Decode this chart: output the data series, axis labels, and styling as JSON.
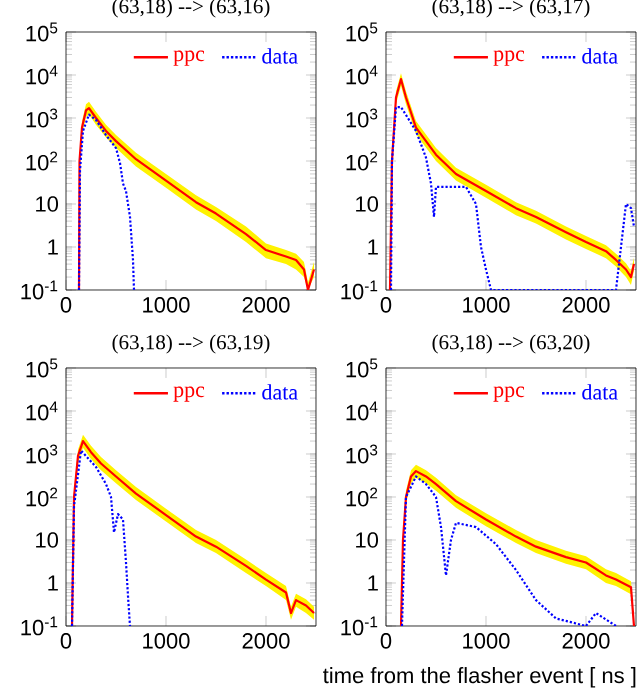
{
  "chart_data": [
    {
      "type": "line",
      "title": "(63,18) --> (63,16)",
      "xlim": [
        0,
        2500
      ],
      "ylim": [
        0.1,
        100000
      ],
      "log": "y",
      "legend": "top right",
      "xticks": [
        0,
        1000,
        2000
      ],
      "yticks": [
        {
          "value": 0.1,
          "label": "10$^{-1}$"
        },
        1,
        10,
        {
          "value": 100,
          "label": "10$^{2}$"
        },
        {
          "value": 1000,
          "label": "10$^{3}$"
        },
        {
          "value": 10000,
          "label": "10$^{4}$"
        },
        {
          "value": 100000,
          "label": "10$^{5}$"
        }
      ],
      "series": [
        {
          "name": "ppc",
          "color": "#ff0000",
          "line_style": "solid",
          "x": [
            130,
            135,
            160,
            200,
            230,
            300,
            400,
            500,
            700,
            1000,
            1300,
            1500,
            1800,
            2000,
            2200,
            2300,
            2380,
            2420,
            2480
          ],
          "values": [
            0.1,
            100,
            600,
            1500,
            1700,
            1000,
            500,
            290,
            110,
            35,
            11,
            6,
            2,
            0.85,
            0.6,
            0.5,
            0.3,
            0.1,
            0.3
          ],
          "lower": [
            0.1,
            70,
            420,
            1050,
            1200,
            700,
            350,
            200,
            75,
            24,
            7.5,
            4,
            1.3,
            0.55,
            0.4,
            0.3,
            0.2,
            0.1,
            0.2
          ],
          "upper": [
            0.1,
            140,
            850,
            2100,
            2400,
            1400,
            700,
            400,
            155,
            50,
            16,
            8.5,
            3,
            1.2,
            0.85,
            0.7,
            0.45,
            0.15,
            0.45
          ]
        },
        {
          "name": "data",
          "color": "#0000ff",
          "line_style": "dotted",
          "x": [
            130,
            140,
            170,
            230,
            300,
            400,
            500,
            540,
            570,
            600,
            640,
            670,
            680
          ],
          "values": [
            0.1,
            60,
            500,
            1200,
            900,
            400,
            200,
            90,
            30,
            20,
            5,
            0.5,
            0.1
          ]
        }
      ]
    },
    {
      "type": "line",
      "title": "(63,18) --> (63,17)",
      "xlim": [
        0,
        2500
      ],
      "ylim": [
        0.1,
        100000
      ],
      "log": "y",
      "legend": "top right",
      "xticks": [
        0,
        1000,
        2000
      ],
      "yticks": [
        {
          "value": 0.1,
          "label": "10$^{-1}$"
        },
        1,
        10,
        {
          "value": 100,
          "label": "10$^{2}$"
        },
        {
          "value": 1000,
          "label": "10$^{3}$"
        },
        {
          "value": 10000,
          "label": "10$^{4}$"
        },
        {
          "value": 100000,
          "label": "10$^{5}$"
        }
      ],
      "series": [
        {
          "name": "ppc",
          "color": "#ff0000",
          "line_style": "solid",
          "x": [
            40,
            60,
            100,
            150,
            200,
            300,
            500,
            700,
            1000,
            1300,
            1500,
            1800,
            2000,
            2200,
            2300,
            2400,
            2450,
            2480
          ],
          "values": [
            0.1,
            100,
            3000,
            8000,
            3000,
            600,
            140,
            50,
            20,
            8,
            5,
            2.2,
            1.3,
            0.8,
            0.5,
            0.3,
            0.2,
            0.4
          ],
          "lower": [
            0.1,
            70,
            2100,
            5600,
            2100,
            420,
            100,
            35,
            14,
            5.5,
            3.5,
            1.5,
            0.9,
            0.55,
            0.35,
            0.2,
            0.13,
            0.28
          ],
          "upper": [
            0.1,
            140,
            4200,
            11000,
            4200,
            850,
            200,
            70,
            28,
            11,
            7,
            3,
            1.8,
            1.1,
            0.7,
            0.42,
            0.28,
            0.56
          ]
        },
        {
          "name": "data",
          "color": "#0000ff",
          "line_style": "dotted",
          "x": [
            50,
            60,
            100,
            150,
            300,
            400,
            450,
            480,
            500,
            550,
            800,
            900,
            950,
            1000,
            1050,
            2300,
            2350,
            2400,
            2450,
            2480
          ],
          "values": [
            0.1,
            100,
            1800,
            1800,
            500,
            120,
            30,
            5,
            25,
            25,
            25,
            10,
            1,
            0.3,
            0.1,
            0.1,
            1,
            10,
            8,
            3
          ]
        }
      ]
    },
    {
      "type": "line",
      "title": "(63,18) --> (63,19)",
      "xlim": [
        0,
        2500
      ],
      "ylim": [
        0.1,
        100000
      ],
      "log": "y",
      "legend": "top right",
      "xticks": [
        0,
        1000,
        2000
      ],
      "yticks": [
        {
          "value": 0.1,
          "label": "10$^{-1}$"
        },
        1,
        10,
        {
          "value": 100,
          "label": "10$^{2}$"
        },
        {
          "value": 1000,
          "label": "10$^{3}$"
        },
        {
          "value": 10000,
          "label": "10$^{4}$"
        },
        {
          "value": 100000,
          "label": "10$^{5}$"
        }
      ],
      "series": [
        {
          "name": "ppc",
          "color": "#ff0000",
          "line_style": "solid",
          "x": [
            60,
            80,
            120,
            170,
            250,
            350,
            500,
            700,
            1000,
            1300,
            1500,
            1800,
            2000,
            2200,
            2250,
            2300,
            2400,
            2480
          ],
          "values": [
            0.1,
            100,
            900,
            2000,
            1100,
            600,
            300,
            120,
            38,
            12,
            7,
            2.5,
            1.2,
            0.6,
            0.2,
            0.4,
            0.3,
            0.2
          ],
          "lower": [
            0.1,
            70,
            630,
            1400,
            770,
            420,
            210,
            85,
            27,
            8.5,
            5,
            1.7,
            0.85,
            0.4,
            0.14,
            0.28,
            0.2,
            0.14
          ],
          "upper": [
            0.1,
            140,
            1250,
            2800,
            1550,
            850,
            420,
            170,
            53,
            17,
            10,
            3.5,
            1.7,
            0.85,
            0.28,
            0.56,
            0.42,
            0.28
          ]
        },
        {
          "name": "data",
          "color": "#0000ff",
          "line_style": "dotted",
          "x": [
            60,
            80,
            150,
            300,
            400,
            450,
            480,
            520,
            570,
            600,
            620,
            640
          ],
          "values": [
            0.1,
            60,
            1200,
            500,
            200,
            100,
            15,
            40,
            30,
            3,
            0.5,
            0.1
          ]
        }
      ]
    },
    {
      "type": "line",
      "title": "(63,18) --> (63,20)",
      "xlabel": "time from the flasher event [ ns ]",
      "xlim": [
        0,
        2500
      ],
      "ylim": [
        0.1,
        100000
      ],
      "log": "y",
      "legend": "top right",
      "xticks": [
        0,
        1000,
        2000
      ],
      "yticks": [
        {
          "value": 0.1,
          "label": "10$^{-1}$"
        },
        1,
        10,
        {
          "value": 100,
          "label": "10$^{2}$"
        },
        {
          "value": 1000,
          "label": "10$^{3}$"
        },
        {
          "value": 10000,
          "label": "10$^{4}$"
        },
        {
          "value": 100000,
          "label": "10$^{5}$"
        }
      ],
      "series": [
        {
          "name": "ppc",
          "color": "#ff0000",
          "line_style": "solid",
          "x": [
            150,
            160,
            170,
            200,
            250,
            300,
            400,
            500,
            700,
            1000,
            1300,
            1500,
            1800,
            2000,
            2200,
            2300,
            2450,
            2480
          ],
          "values": [
            0.1,
            1,
            10,
            100,
            300,
            400,
            300,
            200,
            80,
            30,
            12,
            7,
            4,
            3,
            1.5,
            1.2,
            0.8,
            0.1
          ],
          "lower": [
            0.1,
            0.7,
            7,
            70,
            210,
            280,
            210,
            140,
            56,
            21,
            8.5,
            5,
            2.8,
            2.1,
            1,
            0.85,
            0.55,
            0.1
          ],
          "upper": [
            0.1,
            1.4,
            14,
            140,
            420,
            560,
            420,
            280,
            110,
            42,
            17,
            10,
            5.6,
            4.2,
            2.1,
            1.7,
            1.1,
            0.14
          ]
        },
        {
          "name": "data",
          "color": "#0000ff",
          "line_style": "dotted",
          "x": [
            160,
            200,
            300,
            400,
            500,
            550,
            600,
            650,
            700,
            900,
            1100,
            1300,
            1500,
            1700,
            2000,
            2100,
            2300
          ],
          "values": [
            0.1,
            100,
            300,
            200,
            100,
            20,
            1.5,
            10,
            25,
            20,
            8,
            2,
            0.4,
            0.15,
            0.1,
            0.2,
            0.1
          ]
        }
      ]
    }
  ]
}
